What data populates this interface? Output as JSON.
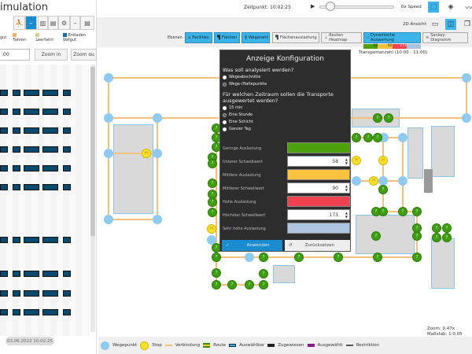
{
  "app": {
    "title": "imulation"
  },
  "left": {
    "toolbar": [
      "person-walk-icon",
      "minus-icon",
      "bar-chart-icon",
      "clipboard-icon",
      "gear-hand-icon",
      "minus-icon",
      "clipboard-icon"
    ],
    "legend": [
      {
        "label": "gut",
        "color": "#888"
      },
      {
        "label": "Fahren",
        "color": "#f5b06a"
      },
      {
        "label": "Leerfahrt",
        "color": "#e0d090"
      },
      {
        "label": "Entladen Vollgut",
        "color": "#1a6ea8"
      }
    ],
    "time_input": ":00",
    "zoom_in": "Zoom in",
    "zoom_out": "Zoom ou",
    "date": "03.06.2022 10:02:25"
  },
  "top": {
    "timepoint": "Zeitpunkt: 10:02:25",
    "speed": "0x Speed",
    "view": "2D Ansicht",
    "slider_value": 0.25
  },
  "layers": {
    "label": "Ebenen",
    "items": [
      {
        "label": "Facilities",
        "active": true
      },
      {
        "label": "Flächen",
        "active": true
      },
      {
        "label": "Wegenetz",
        "active": true
      },
      {
        "label": "Flächenauslastung",
        "active": false
      },
      {
        "label": "Routen Heatmap",
        "active": false
      },
      {
        "label": "Dynamische Auswertung",
        "active": true
      },
      {
        "label": "Sankey-Diagramm",
        "active": false
      }
    ]
  },
  "scale": {
    "values": [
      "58",
      "90",
      "173"
    ],
    "colors": [
      "#4ca10c",
      "#f5be3e",
      "#ee4250",
      "#a9c2e0"
    ],
    "caption": "Transportanzahl (10:00 - 11:00)"
  },
  "dialog": {
    "title": "Anzeige Konfiguration",
    "q1": "Was soll analysiert werden?",
    "q1_options": [
      {
        "label": "Wegeabschnitte",
        "selected": false
      },
      {
        "label": "Wege-/Haltepunkte",
        "selected": true
      }
    ],
    "q2": "Für welchen Zeitraum sollen  die Transporte ausgewertet werden?",
    "q2_options": [
      {
        "label": "15 min",
        "selected": false
      },
      {
        "label": "Eine Stunde",
        "selected": true
      },
      {
        "label": "Eine Schicht",
        "selected": false
      },
      {
        "label": "Ganzer Tag",
        "selected": false
      }
    ],
    "fields": [
      {
        "label": "Geringe Auslastung",
        "color": "#4ca10c"
      },
      {
        "label": "Unterer Schwellwert",
        "value": "58"
      },
      {
        "label": "Mittlere Auslastung",
        "color": "#ffc23f"
      },
      {
        "label": "Mittlerer Schwellwert",
        "value": "90"
      },
      {
        "label": "Hohe Auslastung",
        "color": "#ee4250"
      },
      {
        "label": "Höchster Schwellwert",
        "value": "173"
      },
      {
        "label": "Sehr hohe Auslastung",
        "color": "#adc4e0"
      }
    ],
    "apply": "Anwenden",
    "reset": "Zurücksetzen"
  },
  "map": {
    "zoom": "Zoom: 0.47x",
    "scale": "Maßstab: 1:0.05"
  },
  "legend": [
    {
      "label": "Wegepunkt",
      "kind": "waypoint"
    },
    {
      "label": "Stop",
      "kind": "stop"
    },
    {
      "label": "Verbindung",
      "kind": "connection"
    },
    {
      "label": "Route",
      "kind": "route"
    },
    {
      "label": "Auswählbar",
      "kind": "selectable"
    },
    {
      "label": "Zugewiesen",
      "kind": "assigned"
    },
    {
      "label": "Ausgewählt",
      "kind": "selected"
    },
    {
      "label": "Restriktion",
      "kind": "restriction"
    }
  ]
}
